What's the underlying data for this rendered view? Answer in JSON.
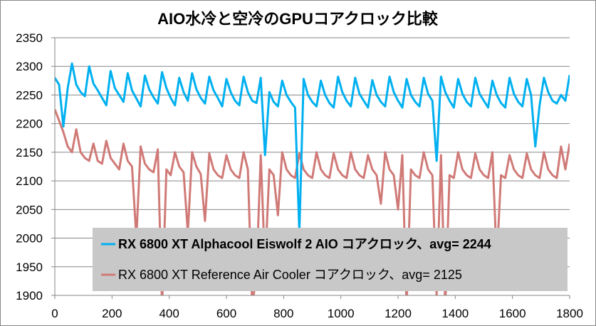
{
  "chart_data": {
    "type": "line",
    "title": "AIO水冷と空冷のGPUコアクロック比較",
    "xlabel": "",
    "ylabel": "",
    "xlim": [
      0,
      1800
    ],
    "ylim": [
      1900,
      2350
    ],
    "xticks": [
      0,
      200,
      400,
      600,
      800,
      1000,
      1200,
      1400,
      1600,
      1800
    ],
    "yticks": [
      1900,
      1950,
      2000,
      2050,
      2100,
      2150,
      2200,
      2250,
      2300,
      2350
    ],
    "grid": "horizontal",
    "legend_placement": "bottom-right inside",
    "x_step": 15,
    "series": [
      {
        "name": "RX 6800 XT Alphacool Eiswolf 2 AIO コアクロック、avg= 2244",
        "color": "#00b0f0",
        "bold": true,
        "values": [
          2280,
          2268,
          2195,
          2262,
          2305,
          2268,
          2255,
          2248,
          2300,
          2270,
          2258,
          2245,
          2232,
          2292,
          2262,
          2250,
          2238,
          2288,
          2258,
          2244,
          2230,
          2284,
          2260,
          2246,
          2235,
          2290,
          2262,
          2245,
          2232,
          2280,
          2255,
          2240,
          2288,
          2260,
          2245,
          2235,
          2282,
          2258,
          2245,
          2230,
          2278,
          2255,
          2240,
          2232,
          2282,
          2255,
          2240,
          2236,
          2280,
          2145,
          2255,
          2238,
          2230,
          2275,
          2250,
          2238,
          2228,
          2010,
          2278,
          2250,
          2238,
          2230,
          2275,
          2250,
          2236,
          2228,
          2282,
          2255,
          2240,
          2230,
          2280,
          2252,
          2240,
          2228,
          2276,
          2250,
          2238,
          2230,
          2282,
          2255,
          2240,
          2228,
          2278,
          2250,
          2238,
          2230,
          2280,
          2252,
          2240,
          2135,
          2282,
          2255,
          2240,
          2228,
          2278,
          2252,
          2238,
          2230,
          2280,
          2252,
          2240,
          2228,
          2275,
          2250,
          2236,
          2228,
          2280,
          2252,
          2238,
          2230,
          2278,
          2250,
          2160,
          2232,
          2280,
          2255,
          2240,
          2235,
          2250,
          2240,
          2285
        ]
      },
      {
        "name": "RX 6800 XT Reference Air Cooler コアクロック、avg= 2125",
        "color": "#d07a77",
        "bold": false,
        "values": [
          2225,
          2205,
          2185,
          2160,
          2150,
          2190,
          2150,
          2140,
          2135,
          2165,
          2135,
          2130,
          2170,
          2140,
          2130,
          2120,
          2165,
          2135,
          2125,
          2000,
          2160,
          2130,
          2120,
          2115,
          2155,
          1880,
          2120,
          2110,
          2150,
          2125,
          2115,
          2010,
          2150,
          2125,
          2112,
          2030,
          2148,
          2120,
          2110,
          2105,
          2145,
          2120,
          2110,
          2105,
          2150,
          2120,
          1880,
          1940,
          2145,
          1950,
          2120,
          2110,
          2040,
          2150,
          2120,
          2110,
          2105,
          2148,
          2120,
          2110,
          2105,
          2150,
          2120,
          2110,
          2105,
          2148,
          2120,
          2110,
          2105,
          2150,
          2120,
          2110,
          2105,
          2145,
          2120,
          2110,
          2060,
          2150,
          2120,
          2110,
          2050,
          2145,
          1880,
          2120,
          2110,
          2105,
          2150,
          2120,
          2110,
          1900,
          2145,
          1880,
          2110,
          2105,
          2150,
          2120,
          2110,
          2105,
          2148,
          2120,
          2110,
          2105,
          2150,
          1960,
          2110,
          2105,
          2145,
          2120,
          2110,
          2105,
          2148,
          2120,
          2110,
          2105,
          2150,
          2120,
          2110,
          2105,
          2160,
          2120,
          2165
        ]
      }
    ]
  }
}
